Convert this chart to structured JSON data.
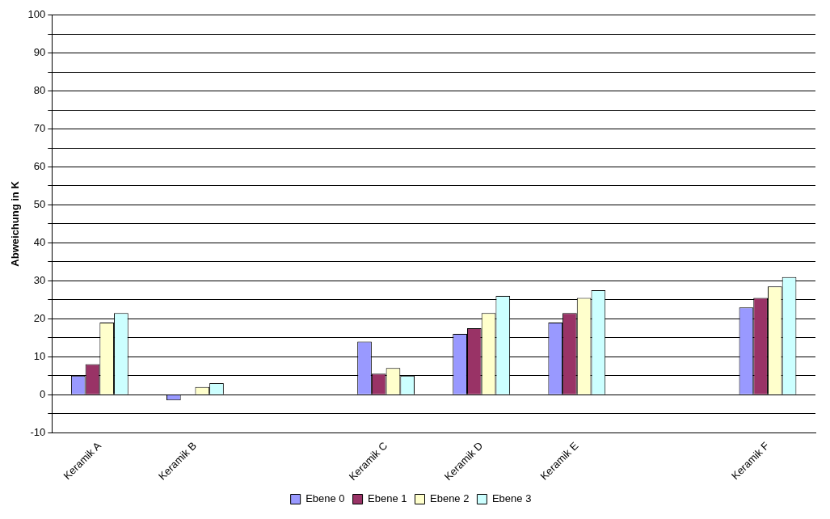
{
  "chart_data": {
    "type": "bar",
    "ylabel": "Abweichung in K",
    "categories": [
      "Keramik A",
      "Keramik B",
      null,
      "Keramik C",
      "Keramik D",
      "Keramik E",
      null,
      "Keramik F"
    ],
    "series": [
      {
        "name": "Ebene 0",
        "color": "#9999ff",
        "values": [
          5,
          -1.5,
          null,
          14,
          16,
          19,
          null,
          23
        ]
      },
      {
        "name": "Ebene 1",
        "color": "#993366",
        "values": [
          8,
          null,
          null,
          5.5,
          17.5,
          21.5,
          null,
          25.5
        ]
      },
      {
        "name": "Ebene 2",
        "color": "#ffffcc",
        "values": [
          19,
          2,
          null,
          7,
          21.5,
          25.5,
          null,
          28.5
        ]
      },
      {
        "name": "Ebene 3",
        "color": "#ccffff",
        "values": [
          21.5,
          3,
          null,
          5,
          26,
          27.5,
          null,
          31
        ]
      }
    ],
    "ylim": [
      -10,
      100
    ],
    "yticks": [
      -10,
      {
        "value": -5,
        "label": null
      },
      0,
      {
        "value": 5,
        "label": null
      },
      10,
      {
        "value": 15,
        "label": null
      },
      20,
      {
        "value": 25,
        "label": null
      },
      30,
      {
        "value": 35,
        "label": null
      },
      40,
      {
        "value": 45,
        "label": null
      },
      50,
      {
        "value": 55,
        "label": null
      },
      60,
      {
        "value": 65,
        "label": null
      },
      70,
      {
        "value": 75,
        "label": null
      },
      80,
      {
        "value": 85,
        "label": null
      },
      90,
      {
        "value": 95,
        "label": null
      },
      100
    ],
    "grid": "y",
    "legend": "bottom"
  }
}
